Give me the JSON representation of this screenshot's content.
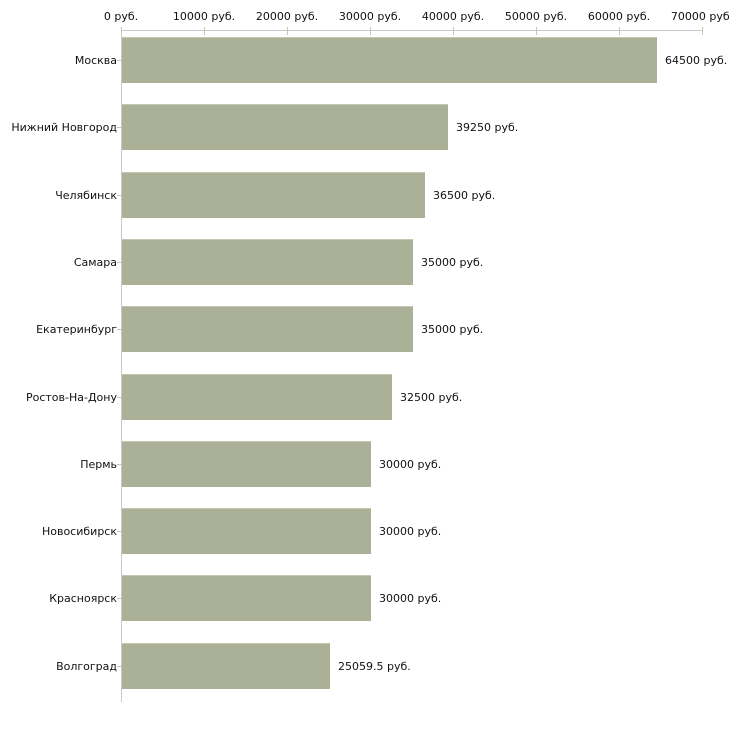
{
  "chart_data": {
    "type": "bar",
    "orientation": "horizontal",
    "title": "",
    "categories": [
      "Москва",
      "Нижний Новгород",
      "Челябинск",
      "Самара",
      "Екатеринбург",
      "Ростов-На-Дону",
      "Пермь",
      "Новосибирск",
      "Красноярск",
      "Волгоград"
    ],
    "values": [
      64500,
      39250,
      36500,
      35000,
      35000,
      32500,
      30000,
      30000,
      30000,
      25059.5
    ],
    "value_labels": [
      "64500 руб.",
      "39250 руб.",
      "36500 руб.",
      "35000 руб.",
      "35000 руб.",
      "32500 руб.",
      "30000 руб.",
      "30000 руб.",
      "30000 руб.",
      "25059.5 руб."
    ],
    "x_axis": {
      "position": "top",
      "min": 0,
      "max": 70000,
      "tick_interval": 10000,
      "tick_values": [
        0,
        10000,
        20000,
        30000,
        40000,
        50000,
        60000,
        70000
      ],
      "tick_labels": [
        "0 руб.",
        "10000 руб.",
        "20000 руб.",
        "30000 руб.",
        "40000 руб.",
        "50000 руб.",
        "60000 руб.",
        "70000 руб."
      ]
    },
    "legend": "none",
    "grid": false,
    "colors": {
      "bar_fill": "#aab197",
      "bar_top_edge": "#c3c7b0",
      "axis_line": "#c9c9c9",
      "tick_mark": "#c9c9a3",
      "text": "#111111",
      "background": "#ffffff"
    }
  }
}
